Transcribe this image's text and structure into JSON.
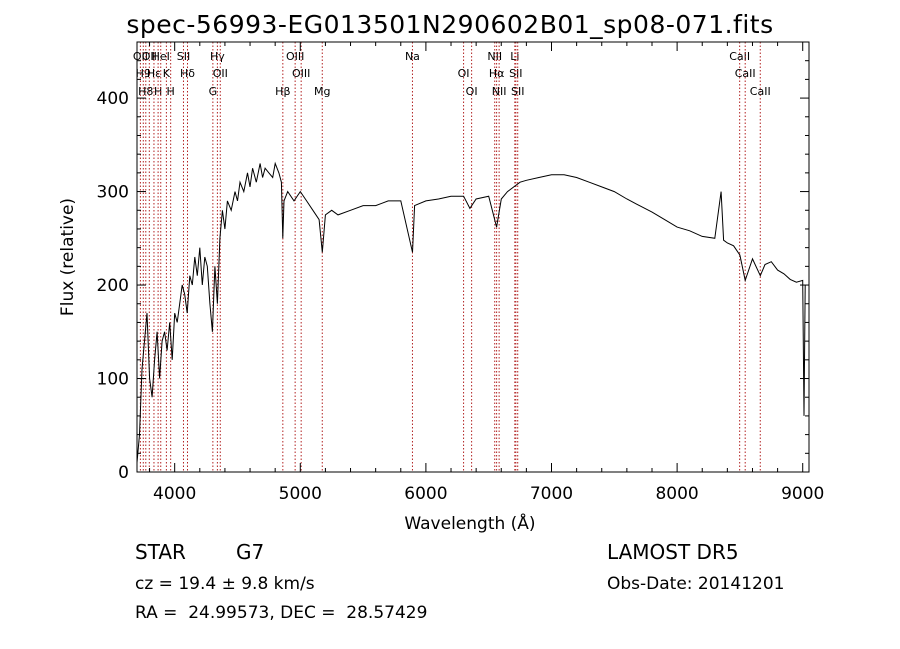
{
  "chart_data": {
    "type": "line",
    "title": "spec-56993-EG013501N290602B01_sp08-071.fits",
    "xlabel": "Wavelength (Å)",
    "ylabel": "Flux (relative)",
    "xlim": [
      3700,
      9050
    ],
    "ylim": [
      0,
      460
    ],
    "xticks": [
      4000,
      5000,
      6000,
      7000,
      8000,
      9000
    ],
    "yticks": [
      0,
      100,
      200,
      300,
      400
    ],
    "series": [
      {
        "points": [
          [
            3700,
            10
          ],
          [
            3720,
            40
          ],
          [
            3740,
            110
          ],
          [
            3760,
            140
          ],
          [
            3780,
            170
          ],
          [
            3800,
            100
          ],
          [
            3820,
            80
          ],
          [
            3840,
            120
          ],
          [
            3860,
            150
          ],
          [
            3880,
            100
          ],
          [
            3900,
            140
          ],
          [
            3920,
            150
          ],
          [
            3940,
            130
          ],
          [
            3960,
            160
          ],
          [
            3980,
            120
          ],
          [
            4000,
            170
          ],
          [
            4020,
            160
          ],
          [
            4040,
            180
          ],
          [
            4060,
            200
          ],
          [
            4080,
            190
          ],
          [
            4100,
            170
          ],
          [
            4120,
            210
          ],
          [
            4140,
            200
          ],
          [
            4160,
            230
          ],
          [
            4180,
            210
          ],
          [
            4200,
            240
          ],
          [
            4220,
            200
          ],
          [
            4240,
            230
          ],
          [
            4260,
            220
          ],
          [
            4280,
            180
          ],
          [
            4300,
            150
          ],
          [
            4320,
            220
          ],
          [
            4340,
            180
          ],
          [
            4360,
            250
          ],
          [
            4380,
            280
          ],
          [
            4400,
            260
          ],
          [
            4420,
            290
          ],
          [
            4450,
            280
          ],
          [
            4480,
            300
          ],
          [
            4500,
            290
          ],
          [
            4520,
            310
          ],
          [
            4550,
            300
          ],
          [
            4580,
            320
          ],
          [
            4600,
            305
          ],
          [
            4620,
            325
          ],
          [
            4650,
            310
          ],
          [
            4680,
            330
          ],
          [
            4700,
            315
          ],
          [
            4720,
            325
          ],
          [
            4750,
            320
          ],
          [
            4780,
            315
          ],
          [
            4800,
            330
          ],
          [
            4830,
            320
          ],
          [
            4850,
            310
          ],
          [
            4861,
            250
          ],
          [
            4870,
            290
          ],
          [
            4900,
            300
          ],
          [
            4950,
            290
          ],
          [
            5000,
            300
          ],
          [
            5050,
            290
          ],
          [
            5100,
            280
          ],
          [
            5150,
            270
          ],
          [
            5175,
            235
          ],
          [
            5200,
            275
          ],
          [
            5250,
            280
          ],
          [
            5300,
            275
          ],
          [
            5400,
            280
          ],
          [
            5500,
            285
          ],
          [
            5600,
            285
          ],
          [
            5700,
            290
          ],
          [
            5800,
            290
          ],
          [
            5893,
            235
          ],
          [
            5910,
            285
          ],
          [
            6000,
            290
          ],
          [
            6100,
            292
          ],
          [
            6200,
            295
          ],
          [
            6300,
            295
          ],
          [
            6350,
            282
          ],
          [
            6400,
            292
          ],
          [
            6500,
            295
          ],
          [
            6563,
            262
          ],
          [
            6600,
            292
          ],
          [
            6650,
            300
          ],
          [
            6700,
            305
          ],
          [
            6750,
            310
          ],
          [
            6800,
            312
          ],
          [
            6900,
            315
          ],
          [
            7000,
            318
          ],
          [
            7100,
            318
          ],
          [
            7200,
            315
          ],
          [
            7300,
            310
          ],
          [
            7400,
            305
          ],
          [
            7500,
            300
          ],
          [
            7600,
            292
          ],
          [
            7700,
            285
          ],
          [
            7800,
            278
          ],
          [
            7900,
            270
          ],
          [
            8000,
            262
          ],
          [
            8100,
            258
          ],
          [
            8200,
            252
          ],
          [
            8300,
            250
          ],
          [
            8350,
            300
          ],
          [
            8370,
            248
          ],
          [
            8400,
            245
          ],
          [
            8450,
            242
          ],
          [
            8500,
            232
          ],
          [
            8542,
            205
          ],
          [
            8600,
            228
          ],
          [
            8662,
            210
          ],
          [
            8700,
            222
          ],
          [
            8750,
            225
          ],
          [
            8800,
            216
          ],
          [
            8850,
            212
          ],
          [
            8900,
            206
          ],
          [
            8950,
            203
          ],
          [
            9000,
            205
          ],
          [
            9010,
            60
          ],
          [
            9020,
            200
          ]
        ]
      }
    ],
    "lines": [
      {
        "x": 3727,
        "labels": [
          "OII"
        ]
      },
      {
        "x": 3750,
        "labels": [
          "H9"
        ]
      },
      {
        "x": 3770,
        "labels": [
          "H8"
        ]
      },
      {
        "x": 3798,
        "labels": [
          "OII"
        ]
      },
      {
        "x": 3835,
        "labels": [
          "Hε"
        ]
      },
      {
        "x": 3868,
        "labels": [
          "H"
        ]
      },
      {
        "x": 3889,
        "labels": [
          "HeI"
        ]
      },
      {
        "x": 3934,
        "labels": [
          "K"
        ]
      },
      {
        "x": 3968,
        "labels": [
          "H"
        ]
      },
      {
        "x": 4070,
        "labels": [
          "SII"
        ]
      },
      {
        "x": 4102,
        "labels": [
          "Hδ"
        ]
      },
      {
        "x": 4304,
        "labels": [
          "G"
        ]
      },
      {
        "x": 4340,
        "labels": [
          "Hγ"
        ]
      },
      {
        "x": 4363,
        "labels": [
          "OII"
        ]
      },
      {
        "x": 4861,
        "labels": [
          "Hβ"
        ]
      },
      {
        "x": 4959,
        "labels": [
          "OIII"
        ]
      },
      {
        "x": 5007,
        "labels": [
          "OIII"
        ]
      },
      {
        "x": 5175,
        "labels": [
          "Mg"
        ]
      },
      {
        "x": 5893,
        "labels": [
          "Na"
        ]
      },
      {
        "x": 6300,
        "labels": [
          "OI"
        ]
      },
      {
        "x": 6364,
        "labels": [
          "OI"
        ]
      },
      {
        "x": 6548,
        "labels": [
          "NII"
        ]
      },
      {
        "x": 6563,
        "labels": [
          "Hα"
        ]
      },
      {
        "x": 6583,
        "labels": [
          "NII"
        ]
      },
      {
        "x": 6708,
        "labels": [
          "Li"
        ]
      },
      {
        "x": 6716,
        "labels": [
          "SII"
        ]
      },
      {
        "x": 6731,
        "labels": [
          "SII"
        ]
      },
      {
        "x": 8498,
        "labels": [
          "CaII"
        ]
      },
      {
        "x": 8542,
        "labels": [
          "CaII"
        ]
      },
      {
        "x": 8662,
        "labels": [
          "CaII"
        ]
      }
    ],
    "line_color": "#b22222",
    "grid": false
  },
  "info": {
    "class": "STAR",
    "subclass": "G7",
    "survey": "LAMOST DR5",
    "cz": "cz = 19.4 ± 9.8 km/s",
    "obs_date": "Obs-Date: 20141201",
    "radec": "RA =  24.99573, DEC =  28.57429"
  }
}
